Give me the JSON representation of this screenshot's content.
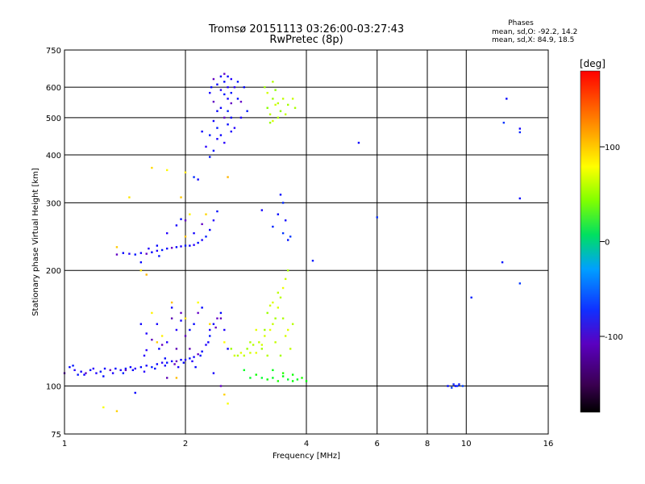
{
  "chart_data": {
    "type": "scatter",
    "title": "Tromsø 20151113 03:26:00-03:27:43",
    "subtitle": "RwPretec (8p)",
    "xlabel": "Frequency [MHz]",
    "ylabel": "Stationary phase Virtual Height [km]",
    "x_scale": "log",
    "y_scale": "log",
    "xlim": [
      1,
      16
    ],
    "ylim": [
      75,
      750
    ],
    "x_ticks": [
      1,
      2,
      4,
      6,
      8,
      10,
      16
    ],
    "y_ticks": [
      75,
      100,
      200,
      300,
      400,
      500,
      600,
      750
    ],
    "grid": true,
    "colorbar": {
      "label": "[deg]",
      "range": [
        -180,
        180
      ],
      "ticks": [
        -100,
        0,
        100
      ]
    },
    "phase_stats": {
      "heading": "Phases",
      "o_line": "mean, sd,O: -92.2, 14.2",
      "x_line": "mean, sd,X:  84.9, 18.5"
    },
    "series": [
      {
        "points": [
          [
            1.0,
            108
          ],
          [
            1.03,
            112
          ],
          [
            1.06,
            110
          ],
          [
            1.08,
            107
          ],
          [
            1.1,
            109
          ],
          [
            1.13,
            108
          ],
          [
            1.16,
            110
          ],
          [
            1.2,
            108
          ],
          [
            1.23,
            109
          ],
          [
            1.26,
            111
          ],
          [
            1.3,
            110
          ],
          [
            1.34,
            111
          ],
          [
            1.38,
            110
          ],
          [
            1.42,
            111
          ],
          [
            1.46,
            112
          ],
          [
            1.5,
            111
          ],
          [
            1.55,
            112
          ],
          [
            1.6,
            113
          ],
          [
            1.65,
            112
          ],
          [
            1.7,
            114
          ],
          [
            1.75,
            115
          ],
          [
            1.8,
            115
          ],
          [
            1.85,
            116
          ],
          [
            1.9,
            116
          ],
          [
            1.95,
            117
          ],
          [
            2.0,
            117
          ],
          [
            2.05,
            118
          ],
          [
            2.1,
            119
          ],
          [
            2.15,
            121
          ],
          [
            2.2,
            123
          ],
          [
            2.25,
            128
          ],
          [
            2.3,
            135
          ],
          [
            2.35,
            145
          ],
          [
            2.4,
            150
          ],
          [
            2.45,
            155
          ],
          [
            2.5,
            140
          ],
          [
            1.05,
            113
          ],
          [
            1.12,
            107
          ],
          [
            1.18,
            111
          ],
          [
            1.25,
            106
          ],
          [
            1.32,
            108
          ],
          [
            1.4,
            108
          ],
          [
            1.48,
            110
          ],
          [
            1.58,
            109
          ],
          [
            1.68,
            111
          ],
          [
            1.78,
            113
          ],
          [
            1.88,
            114
          ],
          [
            1.98,
            115
          ],
          [
            2.08,
            116
          ],
          [
            2.18,
            120
          ],
          [
            2.28,
            130
          ],
          [
            2.38,
            142
          ]
        ],
        "phase": -100
      },
      {
        "points": [
          [
            1.35,
            220
          ],
          [
            1.4,
            222
          ],
          [
            1.45,
            221
          ],
          [
            1.5,
            220
          ],
          [
            1.55,
            222
          ],
          [
            1.6,
            221
          ],
          [
            1.65,
            223
          ],
          [
            1.7,
            225
          ],
          [
            1.75,
            226
          ],
          [
            1.8,
            228
          ],
          [
            1.85,
            229
          ],
          [
            1.9,
            230
          ],
          [
            1.95,
            231
          ],
          [
            2.0,
            232
          ],
          [
            2.05,
            232
          ],
          [
            2.1,
            233
          ],
          [
            2.15,
            236
          ],
          [
            2.2,
            240
          ],
          [
            2.25,
            245
          ],
          [
            2.3,
            255
          ],
          [
            2.35,
            270
          ],
          [
            2.4,
            285
          ],
          [
            1.9,
            262
          ],
          [
            2.0,
            270
          ],
          [
            1.7,
            232
          ],
          [
            1.8,
            250
          ],
          [
            1.95,
            272
          ],
          [
            2.1,
            250
          ],
          [
            2.2,
            264
          ],
          [
            1.55,
            210
          ],
          [
            1.62,
            228
          ],
          [
            1.72,
            218
          ]
        ],
        "phase": -100
      },
      {
        "points": [
          [
            2.35,
            630
          ],
          [
            2.4,
            610
          ],
          [
            2.45,
            590
          ],
          [
            2.5,
            575
          ],
          [
            2.55,
            560
          ],
          [
            2.6,
            545
          ],
          [
            2.5,
            620
          ],
          [
            2.55,
            600
          ],
          [
            2.6,
            580
          ],
          [
            2.45,
            530
          ],
          [
            2.5,
            500
          ],
          [
            2.55,
            480
          ],
          [
            2.6,
            460
          ],
          [
            2.4,
            470
          ],
          [
            2.45,
            450
          ],
          [
            2.5,
            430
          ],
          [
            2.35,
            410
          ],
          [
            2.4,
            440
          ],
          [
            2.55,
            520
          ],
          [
            2.6,
            500
          ],
          [
            2.65,
            600
          ],
          [
            2.7,
            560
          ],
          [
            2.3,
            580
          ],
          [
            2.35,
            550
          ],
          [
            2.4,
            520
          ],
          [
            2.65,
            470
          ],
          [
            2.7,
            620
          ],
          [
            2.45,
            640
          ],
          [
            2.5,
            650
          ],
          [
            2.55,
            640
          ],
          [
            2.6,
            630
          ],
          [
            2.3,
            450
          ],
          [
            2.35,
            490
          ],
          [
            2.75,
            550
          ],
          [
            2.8,
            600
          ],
          [
            2.75,
            500
          ],
          [
            2.85,
            520
          ],
          [
            2.2,
            460
          ],
          [
            2.25,
            420
          ],
          [
            2.32,
            600
          ]
        ],
        "phase": -100
      },
      {
        "points": [
          [
            1.85,
            150
          ],
          [
            1.95,
            148
          ],
          [
            2.0,
            135
          ],
          [
            2.05,
            140
          ],
          [
            1.8,
            130
          ],
          [
            1.9,
            125
          ],
          [
            1.7,
            145
          ],
          [
            1.75,
            128
          ],
          [
            2.1,
            145
          ],
          [
            1.6,
            137
          ],
          [
            1.65,
            132
          ],
          [
            1.55,
            145
          ],
          [
            2.15,
            155
          ],
          [
            2.2,
            160
          ],
          [
            2.3,
            140
          ],
          [
            2.45,
            150
          ],
          [
            2.55,
            125
          ],
          [
            1.6,
            124
          ],
          [
            1.78,
            118
          ],
          [
            1.92,
            112
          ],
          [
            1.42,
            110
          ],
          [
            1.5,
            96
          ],
          [
            1.58,
            120
          ],
          [
            1.8,
            105
          ],
          [
            2.35,
            108
          ],
          [
            2.45,
            100
          ],
          [
            1.72,
            125
          ],
          [
            1.9,
            140
          ],
          [
            2.05,
            125
          ],
          [
            1.85,
            160
          ],
          [
            1.95,
            155
          ],
          [
            2.12,
            112
          ]
        ],
        "phase": -105
      },
      {
        "points": [
          [
            2.6,
            125
          ],
          [
            2.65,
            120
          ],
          [
            2.7,
            120
          ],
          [
            2.75,
            122
          ],
          [
            2.8,
            120
          ],
          [
            2.85,
            125
          ],
          [
            2.9,
            122
          ],
          [
            2.95,
            128
          ],
          [
            3.0,
            122
          ],
          [
            3.05,
            130
          ],
          [
            3.1,
            125
          ],
          [
            3.15,
            135
          ],
          [
            3.2,
            120
          ],
          [
            3.25,
            140
          ],
          [
            3.3,
            145
          ],
          [
            3.35,
            150
          ],
          [
            3.4,
            160
          ],
          [
            3.45,
            170
          ],
          [
            3.5,
            180
          ],
          [
            3.55,
            190
          ],
          [
            3.6,
            200
          ],
          [
            3.3,
            165
          ],
          [
            3.4,
            175
          ],
          [
            3.2,
            155
          ],
          [
            3.25,
            162
          ],
          [
            3.5,
            150
          ],
          [
            3.6,
            140
          ],
          [
            3.65,
            125
          ],
          [
            3.15,
            140
          ],
          [
            3.1,
            128
          ],
          [
            2.9,
            130
          ],
          [
            3.0,
            140
          ],
          [
            3.35,
            130
          ],
          [
            3.45,
            120
          ],
          [
            3.55,
            135
          ],
          [
            3.7,
            145
          ]
        ],
        "phase": 95
      },
      {
        "points": [
          [
            3.2,
            530
          ],
          [
            3.25,
            510
          ],
          [
            3.3,
            560
          ],
          [
            3.35,
            540
          ],
          [
            3.4,
            500
          ],
          [
            3.45,
            520
          ],
          [
            3.5,
            560
          ],
          [
            3.15,
            600
          ],
          [
            3.2,
            580
          ],
          [
            3.3,
            620
          ],
          [
            3.35,
            590
          ],
          [
            3.55,
            510
          ],
          [
            3.6,
            540
          ],
          [
            3.3,
            490
          ],
          [
            3.4,
            545
          ],
          [
            3.25,
            485
          ],
          [
            3.7,
            560
          ],
          [
            3.75,
            530
          ]
        ],
        "phase": 90
      },
      {
        "points": [
          [
            3.1,
            105
          ],
          [
            3.2,
            104
          ],
          [
            3.3,
            105
          ],
          [
            3.4,
            103
          ],
          [
            3.5,
            106
          ],
          [
            3.6,
            104
          ],
          [
            3.7,
            107
          ],
          [
            3.8,
            104
          ],
          [
            3.9,
            105
          ],
          [
            4.0,
            103
          ],
          [
            2.9,
            105
          ],
          [
            3.0,
            107
          ],
          [
            3.3,
            110
          ],
          [
            3.5,
            108
          ],
          [
            3.7,
            103
          ],
          [
            2.8,
            110
          ]
        ],
        "phase": 40
      },
      {
        "points": [
          [
            1.25,
            88
          ],
          [
            1.35,
            86
          ],
          [
            1.65,
            155
          ],
          [
            1.85,
            165
          ],
          [
            2.0,
            150
          ],
          [
            2.15,
            165
          ],
          [
            1.7,
            130
          ],
          [
            1.75,
            135
          ],
          [
            1.9,
            105
          ],
          [
            2.3,
            145
          ],
          [
            2.5,
            130
          ],
          [
            1.35,
            230
          ],
          [
            1.55,
            200
          ],
          [
            1.6,
            195
          ],
          [
            1.65,
            370
          ],
          [
            1.8,
            365
          ],
          [
            1.95,
            310
          ],
          [
            2.0,
            360
          ],
          [
            2.55,
            350
          ],
          [
            2.25,
            280
          ],
          [
            2.05,
            280
          ],
          [
            2.0,
            245
          ],
          [
            1.45,
            310
          ],
          [
            2.55,
            90
          ],
          [
            2.5,
            95
          ]
        ],
        "phase": 120
      },
      {
        "points": [
          [
            3.1,
            287
          ],
          [
            3.3,
            260
          ],
          [
            3.4,
            280
          ],
          [
            3.5,
            250
          ],
          [
            3.6,
            240
          ],
          [
            3.55,
            270
          ],
          [
            3.5,
            300
          ],
          [
            3.45,
            315
          ],
          [
            3.65,
            245
          ],
          [
            4.15,
            212
          ],
          [
            5.4,
            430
          ],
          [
            6.0,
            275
          ],
          [
            9.0,
            100
          ],
          [
            9.2,
            99
          ],
          [
            9.3,
            101
          ],
          [
            9.4,
            100
          ],
          [
            9.5,
            100
          ],
          [
            9.6,
            101
          ],
          [
            9.8,
            100
          ],
          [
            10.3,
            170
          ],
          [
            12.6,
            560
          ],
          [
            12.4,
            485
          ],
          [
            12.3,
            210
          ],
          [
            13.6,
            468
          ],
          [
            13.6,
            458
          ],
          [
            13.6,
            308
          ],
          [
            13.6,
            185
          ],
          [
            2.3,
            395
          ],
          [
            2.15,
            345
          ],
          [
            2.1,
            350
          ]
        ],
        "phase": -90
      }
    ]
  }
}
